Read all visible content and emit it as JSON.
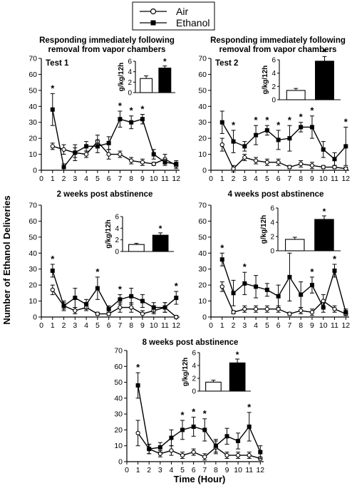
{
  "legend": {
    "items": [
      {
        "label": "Air",
        "marker": "open-circle"
      },
      {
        "label": "Ethanol",
        "marker": "filled-square"
      }
    ]
  },
  "y_axis_label": "Number of Ethanol Deliveries",
  "x_axis_label": "Time (Hour)",
  "chart_data": [
    {
      "type": "line",
      "title": "Responding immediately following removal from vapor chambers",
      "panel_label": "Test 1",
      "x": [
        1,
        2,
        3,
        4,
        5,
        6,
        7,
        8,
        9,
        10,
        11,
        12
      ],
      "ylim": [
        0,
        70
      ],
      "yticks": [
        0,
        10,
        20,
        30,
        40,
        50,
        60,
        70
      ],
      "series": [
        {
          "name": "Air",
          "marker": "open-circle",
          "values": [
            15,
            13,
            11,
            10,
            18,
            10,
            10,
            6,
            5,
            4,
            7,
            3
          ],
          "errors": [
            2,
            3,
            3,
            2,
            4,
            3,
            2,
            2,
            2,
            1,
            3,
            2
          ]
        },
        {
          "name": "Ethanol",
          "marker": "filled-square",
          "values": [
            38,
            2,
            11,
            15,
            15,
            17,
            32,
            30,
            32,
            10,
            5,
            4
          ],
          "errors": [
            10,
            2,
            5,
            3,
            4,
            4,
            5,
            4,
            3,
            3,
            2,
            2
          ]
        }
      ],
      "significant_hours": [
        1,
        7,
        8,
        9
      ],
      "inset": {
        "type": "bar",
        "ylabel": "g/kg/12h",
        "ylim": [
          0,
          6
        ],
        "yticks": [
          0,
          2,
          4,
          6
        ],
        "categories": [
          "Air",
          "Ethanol"
        ],
        "values": [
          2.7,
          4.7
        ],
        "errors": [
          0.5,
          0.4
        ],
        "significant": [
          false,
          true
        ]
      }
    },
    {
      "type": "line",
      "title": "Responding immediately following removal from vapor chambers",
      "panel_label": "Test 2",
      "x": [
        1,
        2,
        3,
        4,
        5,
        6,
        7,
        8,
        9,
        10,
        11,
        12
      ],
      "ylim": [
        0,
        70
      ],
      "yticks": [
        0,
        10,
        20,
        30,
        40,
        50,
        60,
        70
      ],
      "series": [
        {
          "name": "Air",
          "marker": "open-circle",
          "values": [
            16,
            1,
            8,
            6,
            5,
            5,
            2,
            4,
            3,
            2,
            2,
            1
          ],
          "errors": [
            4,
            2,
            2,
            2,
            2,
            2,
            1,
            2,
            2,
            1,
            1,
            1
          ]
        },
        {
          "name": "Ethanol",
          "marker": "filled-square",
          "values": [
            30,
            18,
            15,
            22,
            25,
            19,
            20,
            27,
            27,
            13,
            7,
            15
          ],
          "errors": [
            7,
            7,
            3,
            6,
            3,
            6,
            8,
            3,
            7,
            5,
            4,
            12
          ]
        }
      ],
      "significant_hours": [
        2,
        4,
        5,
        6,
        7,
        8,
        9,
        12
      ],
      "inset": {
        "type": "bar",
        "ylabel": "g/kg/12h",
        "ylim": [
          0,
          6
        ],
        "yticks": [
          0,
          2,
          4,
          6
        ],
        "categories": [
          "Air",
          "Ethanol"
        ],
        "values": [
          1.4,
          5.8
        ],
        "errors": [
          0.3,
          0.7
        ],
        "significant": [
          false,
          true
        ]
      }
    },
    {
      "type": "line",
      "title": "2 weeks post abstinence",
      "panel_label": "",
      "x": [
        1,
        2,
        3,
        4,
        5,
        6,
        7,
        8,
        9,
        10,
        11,
        12
      ],
      "ylim": [
        0,
        70
      ],
      "yticks": [
        0,
        10,
        20,
        30,
        40,
        50,
        60,
        70
      ],
      "series": [
        {
          "name": "Air",
          "marker": "open-circle",
          "values": [
            17,
            7,
            4,
            6,
            2,
            2,
            6,
            6,
            2,
            4,
            6,
            0
          ],
          "errors": [
            3,
            2,
            2,
            2,
            1,
            1,
            3,
            3,
            2,
            2,
            3,
            1
          ]
        },
        {
          "name": "Ethanol",
          "marker": "filled-square",
          "values": [
            29,
            7,
            12,
            8,
            18,
            5,
            11,
            13,
            10,
            6,
            6,
            12
          ],
          "errors": [
            4,
            3,
            6,
            3,
            7,
            2,
            3,
            5,
            4,
            3,
            3,
            4
          ]
        }
      ],
      "significant_hours": [
        1,
        5,
        7,
        12
      ],
      "inset": {
        "type": "bar",
        "ylabel": "g/kg/12h",
        "ylim": [
          0,
          6
        ],
        "yticks": [
          0,
          2,
          4,
          6
        ],
        "categories": [
          "Air",
          "Ethanol"
        ],
        "values": [
          1.2,
          2.8
        ],
        "errors": [
          0.2,
          0.4
        ],
        "significant": [
          false,
          true
        ]
      }
    },
    {
      "type": "line",
      "title": "4 weeks post abstinence",
      "panel_label": "",
      "x": [
        1,
        2,
        3,
        4,
        5,
        6,
        7,
        8,
        9,
        10,
        11,
        12
      ],
      "ylim": [
        0,
        70
      ],
      "yticks": [
        0,
        10,
        20,
        30,
        40,
        50,
        60,
        70
      ],
      "series": [
        {
          "name": "Air",
          "marker": "open-circle",
          "values": [
            19,
            3,
            5,
            5,
            5,
            5,
            2,
            4,
            3,
            10,
            5,
            2
          ],
          "errors": [
            3,
            1,
            2,
            2,
            2,
            2,
            1,
            2,
            2,
            4,
            2,
            1
          ]
        },
        {
          "name": "Ethanol",
          "marker": "filled-square",
          "values": [
            36,
            15,
            21,
            19,
            17,
            13,
            25,
            14,
            20,
            6,
            29,
            3
          ],
          "errors": [
            4,
            8,
            7,
            7,
            4,
            7,
            15,
            8,
            5,
            3,
            4,
            2
          ]
        }
      ],
      "significant_hours": [
        1,
        3,
        7,
        9,
        11
      ],
      "inset": {
        "type": "bar",
        "ylabel": "g/kg/12h",
        "ylim": [
          0,
          6
        ],
        "yticks": [
          0,
          2,
          4,
          6
        ],
        "categories": [
          "Air",
          "Ethanol"
        ],
        "values": [
          1.6,
          4.4
        ],
        "errors": [
          0.3,
          0.5
        ],
        "significant": [
          false,
          true
        ]
      }
    },
    {
      "type": "line",
      "title": "8 weeks post abstinence",
      "panel_label": "",
      "x": [
        1,
        2,
        3,
        4,
        5,
        6,
        7,
        8,
        9,
        10,
        11,
        12
      ],
      "ylim": [
        0,
        70
      ],
      "yticks": [
        0,
        10,
        20,
        30,
        40,
        50,
        60,
        70
      ],
      "series": [
        {
          "name": "Air",
          "marker": "open-circle",
          "values": [
            18,
            8,
            5,
            7,
            4,
            6,
            3,
            9,
            4,
            4,
            4,
            2
          ],
          "errors": [
            8,
            3,
            2,
            3,
            2,
            2,
            2,
            4,
            2,
            2,
            2,
            1
          ]
        },
        {
          "name": "Ethanol",
          "marker": "filled-square",
          "values": [
            48,
            8,
            9,
            15,
            20,
            22,
            20,
            10,
            16,
            13,
            22,
            6
          ],
          "errors": [
            8,
            3,
            3,
            5,
            6,
            6,
            7,
            4,
            5,
            5,
            9,
            4
          ]
        }
      ],
      "significant_hours": [
        1,
        5,
        6,
        7,
        11
      ],
      "inset": {
        "type": "bar",
        "ylabel": "g/kg/12h",
        "ylim": [
          0,
          6
        ],
        "yticks": [
          0,
          2,
          4,
          6
        ],
        "categories": [
          "Air",
          "Ethanol"
        ],
        "values": [
          1.4,
          4.4
        ],
        "errors": [
          0.3,
          0.6
        ],
        "significant": [
          false,
          true
        ]
      }
    }
  ]
}
